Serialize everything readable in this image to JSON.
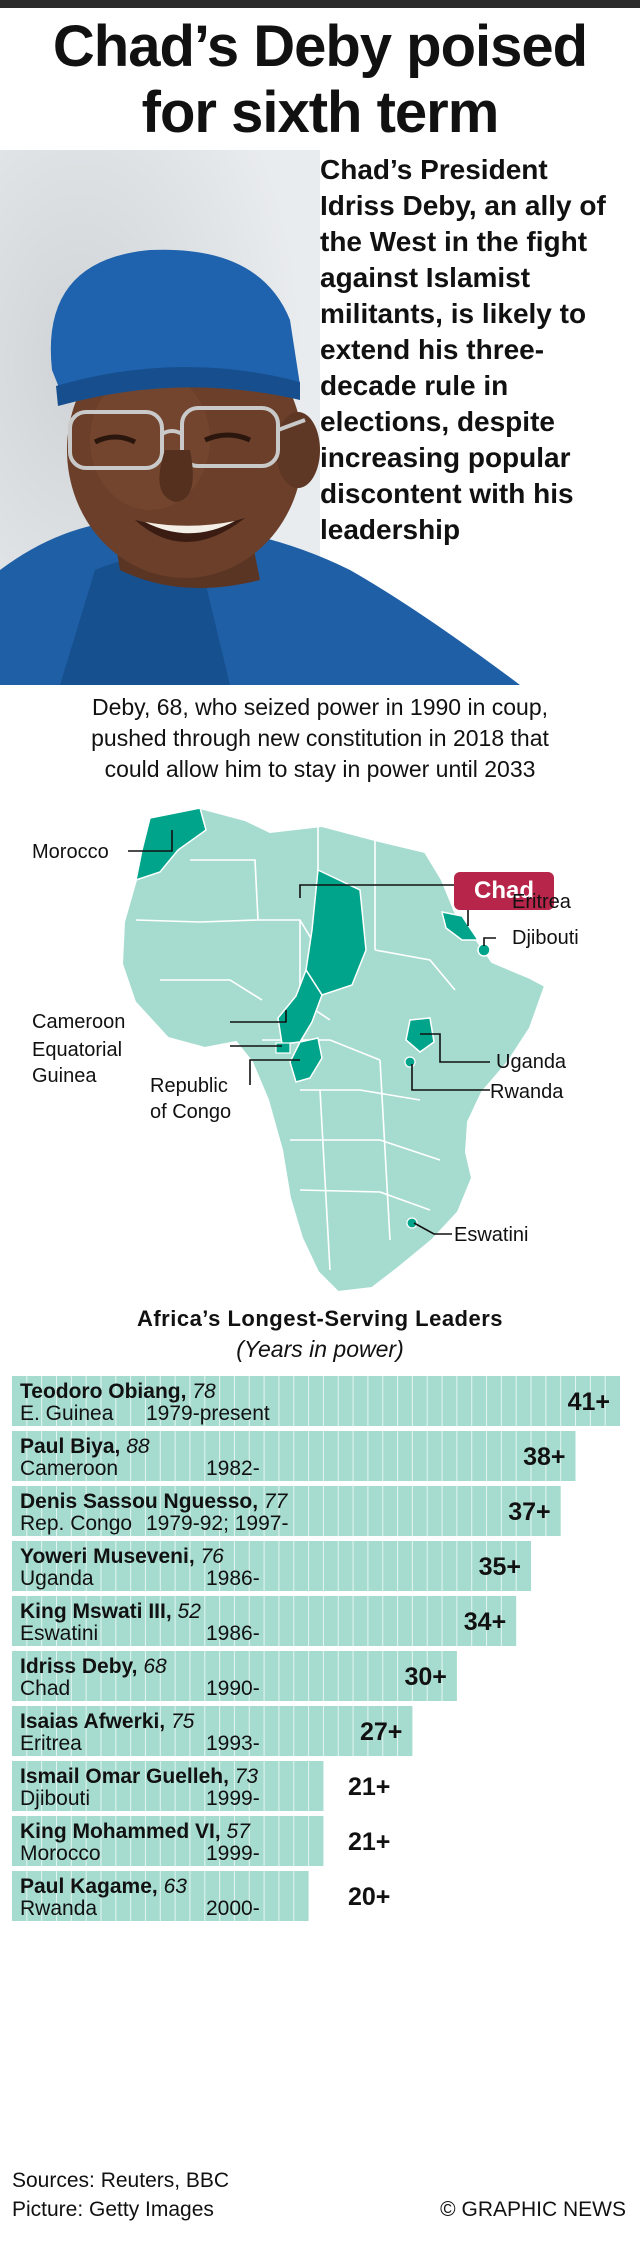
{
  "headline": {
    "line1": "Chad’s Deby poised",
    "line2": "for sixth term"
  },
  "intro": "Chad’s President Idriss Deby, an ally of the West in the fight against Islamist militants, is likely to extend his three-decade rule in elections, despite increasing popular discontent with his leadership",
  "deck": {
    "line1": "Deby, 68, who seized power in 1990 in coup,",
    "line2": "pushed through new constitution in 2018 that",
    "line3": "could allow him to stay in power until 2033"
  },
  "map": {
    "highlight": "Chad",
    "labels": {
      "morocco": "Morocco",
      "eritrea": "Eritrea",
      "djibouti": "Djibouti",
      "cameroon": "Cameroon",
      "eq_guinea_1": "Equatorial",
      "eq_guinea_2": "Guinea",
      "congo_1": "Republic",
      "congo_2": "of Congo",
      "uganda": "Uganda",
      "rwanda": "Rwanda",
      "eswatini": "Eswatini"
    },
    "colors": {
      "land": "#a6dccf",
      "highlight": "#00a48a",
      "badge": "#b7264a"
    }
  },
  "chart_data": {
    "type": "bar",
    "title": "Africa’s Longest-Serving Leaders",
    "subtitle": "(Years in power)",
    "unit_suffix": "+",
    "xlim": [
      0,
      41
    ],
    "rows": [
      {
        "name": "Teodoro Obiang,",
        "age": "78",
        "country": "E. Guinea",
        "period": "1979-present",
        "value": 41
      },
      {
        "name": "Paul Biya,",
        "age": "88",
        "country": "Cameroon",
        "period": "1982-",
        "value": 38
      },
      {
        "name": "Denis Sassou Nguesso,",
        "age": "77",
        "country": "Rep. Congo",
        "period": "1979-92; 1997-",
        "value": 37
      },
      {
        "name": "Yoweri Museveni,",
        "age": "76",
        "country": "Uganda",
        "period": "1986-",
        "value": 35
      },
      {
        "name": "King Mswati III,",
        "age": "52",
        "country": "Eswatini",
        "period": "1986-",
        "value": 34
      },
      {
        "name": "Idriss Deby,",
        "age": "68",
        "country": "Chad",
        "period": "1990-",
        "value": 30
      },
      {
        "name": "Isaias Afwerki,",
        "age": "75",
        "country": "Eritrea",
        "period": "1993-",
        "value": 27
      },
      {
        "name": "Ismail Omar Guelleh,",
        "age": "73",
        "country": "Djibouti",
        "period": "1999-",
        "value": 21
      },
      {
        "name": "King Mohammed VI,",
        "age": "57",
        "country": "Morocco",
        "period": "1999-",
        "value": 21
      },
      {
        "name": "Paul Kagame,",
        "age": "63",
        "country": "Rwanda",
        "period": "2000-",
        "value": 20
      }
    ],
    "colors": {
      "bar": "#a6dccf",
      "stripe": "#ffffff"
    }
  },
  "footer": {
    "sources": "Sources: Reuters, BBC",
    "picture": "Picture: Getty Images",
    "credit": "© GRAPHIC NEWS"
  }
}
